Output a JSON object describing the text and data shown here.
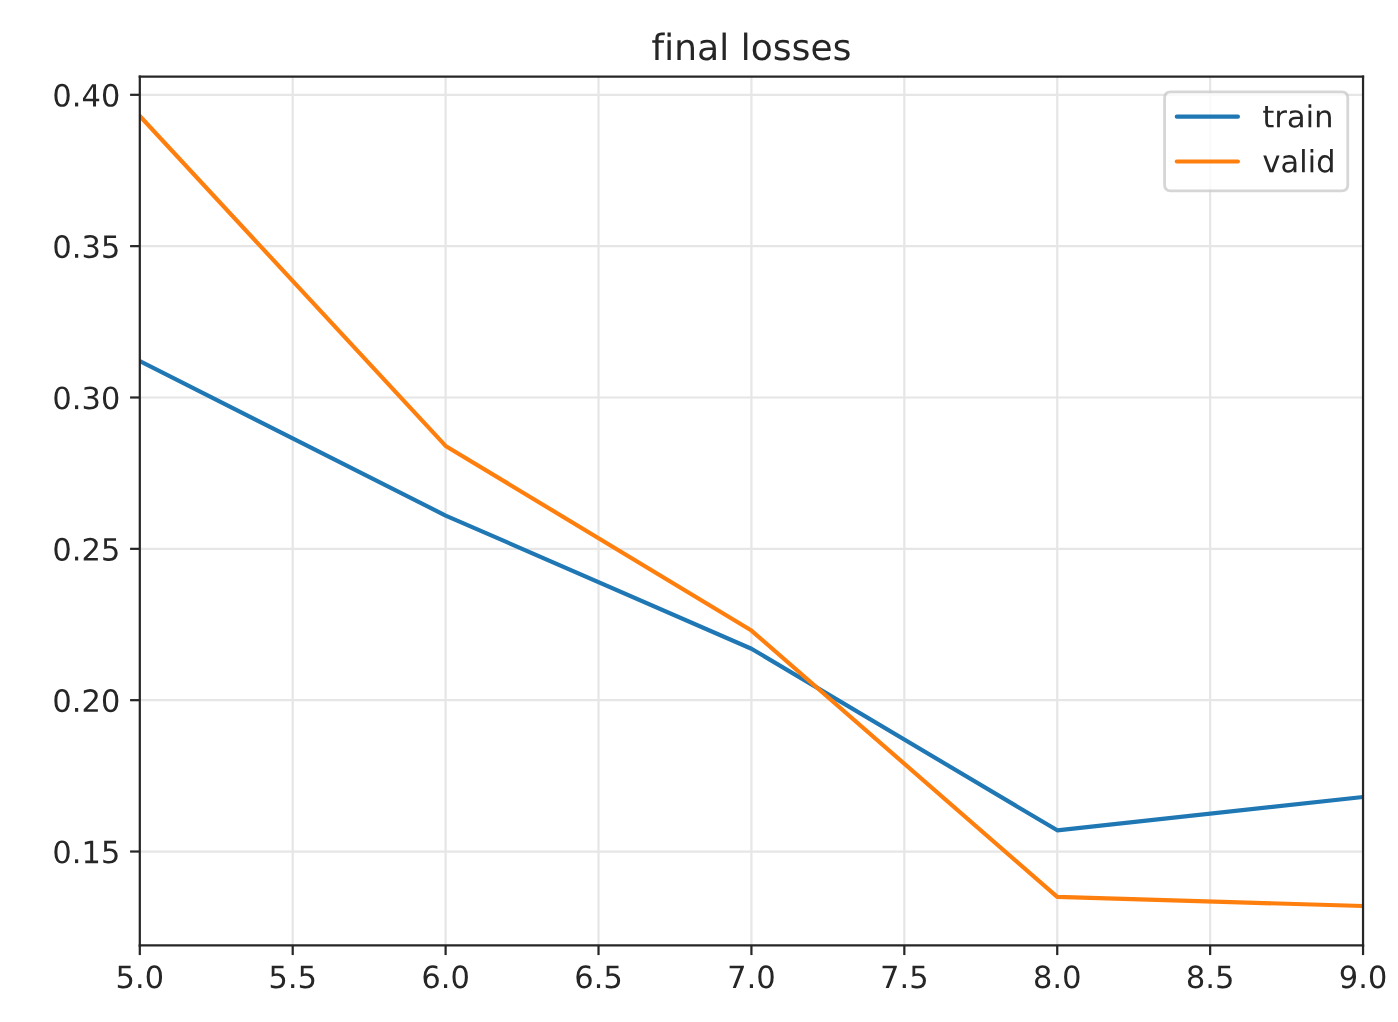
{
  "chart_data": {
    "type": "line",
    "title": "final losses",
    "x": [
      5,
      6,
      7,
      8,
      9
    ],
    "series": [
      {
        "name": "train",
        "color": "#1f77b4",
        "values": [
          0.312,
          0.261,
          0.217,
          0.157,
          0.168
        ]
      },
      {
        "name": "valid",
        "color": "#ff7f0e",
        "values": [
          0.393,
          0.284,
          0.223,
          0.135,
          0.132
        ]
      }
    ],
    "xlim": [
      5.0,
      9.0
    ],
    "xticks": [
      {
        "value": 5,
        "label": "5.0"
      },
      {
        "value": 5.5,
        "label": "5.5"
      },
      {
        "value": 6,
        "label": "6.0"
      },
      {
        "value": 6.5,
        "label": "6.5"
      },
      {
        "value": 7,
        "label": "7.0"
      },
      {
        "value": 7.5,
        "label": "7.5"
      },
      {
        "value": 8,
        "label": "8.0"
      },
      {
        "value": 8.5,
        "label": "8.5"
      },
      {
        "value": 9,
        "label": "9.0"
      }
    ],
    "ylim": [
      0.119,
      0.406
    ],
    "yticks": [
      {
        "value": 0.15,
        "label": "0.15"
      },
      {
        "value": 0.2,
        "label": "0.20"
      },
      {
        "value": 0.25,
        "label": "0.25"
      },
      {
        "value": 0.3,
        "label": "0.30"
      },
      {
        "value": 0.35,
        "label": "0.35"
      },
      {
        "value": 0.4,
        "label": "0.40"
      }
    ],
    "grid": true,
    "legend": "top right",
    "marker": "none",
    "line_style": "solid"
  }
}
